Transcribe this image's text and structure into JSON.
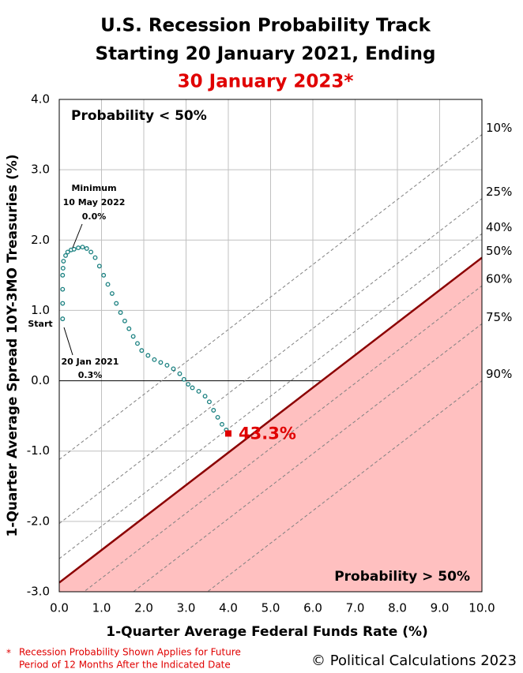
{
  "chart_data": {
    "type": "scatter",
    "title_lines": [
      "U.S. Recession Probability Track",
      "Starting 20 January 2021, Ending",
      "30 January 2023*"
    ],
    "x_label": "1-Quarter Average Federal Funds Rate (%)",
    "y_label": "1-Quarter Average Spread 10Y-3MO Treasuries (%)",
    "xlim": [
      0,
      10
    ],
    "ylim": [
      -3,
      4
    ],
    "xticks": [
      {
        "value": 0,
        "label": "0.0"
      },
      {
        "value": 1,
        "label": "1.0"
      },
      {
        "value": 2,
        "label": "2.0"
      },
      {
        "value": 3,
        "label": "3.0"
      },
      {
        "value": 4,
        "label": "4.0"
      },
      {
        "value": 5,
        "label": "5.0"
      },
      {
        "value": 6,
        "label": "6.0"
      },
      {
        "value": 7,
        "label": "7.0"
      },
      {
        "value": 8,
        "label": "8.0"
      },
      {
        "value": 9,
        "label": "9.0"
      },
      {
        "value": 10,
        "label": "10.0"
      }
    ],
    "yticks": [
      {
        "value": -3,
        "label": "-3.0"
      },
      {
        "value": -2,
        "label": "-2.0"
      },
      {
        "value": -1,
        "label": "-1.0"
      },
      {
        "value": 0,
        "label": "0.0"
      },
      {
        "value": 1,
        "label": "1.0"
      },
      {
        "value": 2,
        "label": "2.0"
      },
      {
        "value": 3,
        "label": "3.0"
      },
      {
        "value": 4,
        "label": "4.0"
      }
    ],
    "grid": true,
    "series": [
      {
        "name": "Track",
        "color": "#1a8080",
        "x": [
          0.08,
          0.08,
          0.08,
          0.08,
          0.09,
          0.1,
          0.15,
          0.2,
          0.28,
          0.35,
          0.45,
          0.55,
          0.65,
          0.75,
          0.85,
          0.95,
          1.05,
          1.15,
          1.25,
          1.35,
          1.45,
          1.55,
          1.65,
          1.75,
          1.85,
          1.95,
          2.1,
          2.25,
          2.4,
          2.55,
          2.7,
          2.85,
          2.95,
          3.05,
          3.15,
          3.3,
          3.45,
          3.55,
          3.65,
          3.75,
          3.85,
          3.95
        ],
        "values": [
          0.88,
          1.1,
          1.3,
          1.5,
          1.6,
          1.7,
          1.78,
          1.83,
          1.86,
          1.87,
          1.89,
          1.9,
          1.88,
          1.83,
          1.75,
          1.63,
          1.5,
          1.37,
          1.24,
          1.1,
          0.97,
          0.85,
          0.74,
          0.63,
          0.53,
          0.43,
          0.36,
          0.3,
          0.26,
          0.22,
          0.17,
          0.1,
          0.02,
          -0.05,
          -0.1,
          -0.15,
          -0.22,
          -0.3,
          -0.42,
          -0.52,
          -0.62,
          -0.7
        ]
      }
    ],
    "endpoint": {
      "x": 4.0,
      "y": -0.75,
      "label": "43.3%",
      "color": "#e00000"
    },
    "probability_lines": [
      {
        "label": "10%",
        "x": [
          0,
          10
        ],
        "values": [
          -1.12,
          3.5
        ]
      },
      {
        "label": "25%",
        "x": [
          0,
          10
        ],
        "values": [
          -2.03,
          2.59
        ]
      },
      {
        "label": "40%",
        "x": [
          0,
          10
        ],
        "values": [
          -2.53,
          2.09
        ]
      },
      {
        "label": "50%",
        "x": [
          0,
          10
        ],
        "values": [
          -2.87,
          1.75
        ]
      },
      {
        "label": "60%",
        "x": [
          0,
          10
        ],
        "values": [
          -3.27,
          1.35
        ]
      },
      {
        "label": "75%",
        "x": [
          0,
          10
        ],
        "values": [
          -3.81,
          0.81
        ]
      },
      {
        "label": "90%",
        "x": [
          0,
          10
        ],
        "values": [
          -4.62,
          0.0
        ]
      }
    ],
    "threshold_index": 3,
    "annotations": {
      "low": "Probability < 50%",
      "high": "Probability > 50%",
      "minimum": [
        "Minimum",
        "10 May 2022",
        "0.0%"
      ],
      "start": "Start",
      "start_date": [
        "20 Jan 2021",
        "0.3%"
      ]
    },
    "footnote_mark": "*",
    "footnote": [
      "Recession Probability Shown Applies for Future",
      "Period of 12 Months After the Indicated Date"
    ],
    "credit": "© Political Calculations 2023"
  }
}
